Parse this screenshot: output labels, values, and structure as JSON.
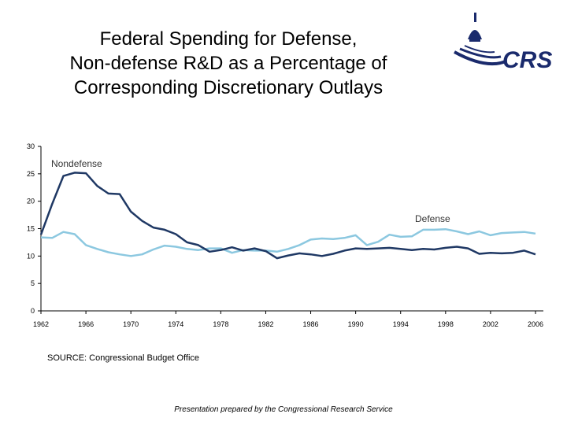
{
  "title_lines": [
    "Federal Spending for Defense,",
    "Non-defense R&D as a Percentage of",
    "Corresponding Discretionary Outlays"
  ],
  "logo": {
    "text": "CRS",
    "icon": "capitol-dome-icon",
    "color": "#1a2a6c"
  },
  "source": "SOURCE: Congressional Budget Office",
  "footer": "Presentation prepared by the Congressional Research Service",
  "chart_data": {
    "type": "line",
    "title": "",
    "xlabel": "",
    "ylabel": "",
    "xlim": [
      1962,
      2006
    ],
    "ylim": [
      0,
      30
    ],
    "yticks": [
      0,
      5,
      10,
      15,
      20,
      25,
      30
    ],
    "xticks": [
      1962,
      1966,
      1970,
      1974,
      1978,
      1982,
      1986,
      1990,
      1994,
      1998,
      2002,
      2006
    ],
    "grid": false,
    "x": [
      1962,
      1963,
      1964,
      1965,
      1966,
      1967,
      1968,
      1969,
      1970,
      1971,
      1972,
      1973,
      1974,
      1975,
      1976,
      1977,
      1978,
      1979,
      1980,
      1981,
      1982,
      1983,
      1984,
      1985,
      1986,
      1987,
      1988,
      1989,
      1990,
      1991,
      1992,
      1993,
      1994,
      1995,
      1996,
      1997,
      1998,
      1999,
      2000,
      2001,
      2002,
      2003,
      2004,
      2005,
      2006
    ],
    "series": [
      {
        "name": "Nondefense",
        "color": "#1f3864",
        "values": [
          13.9,
          19.5,
          24.6,
          25.2,
          25.1,
          22.8,
          21.4,
          21.3,
          18.1,
          16.4,
          15.2,
          14.8,
          14.0,
          12.5,
          12.0,
          10.8,
          11.1,
          11.6,
          11.0,
          11.4,
          10.9,
          9.6,
          10.1,
          10.5,
          10.3,
          10.0,
          10.4,
          11.0,
          11.4,
          11.3,
          11.4,
          11.5,
          11.3,
          11.1,
          11.3,
          11.2,
          11.5,
          11.7,
          11.4,
          10.4,
          10.6,
          10.5,
          10.6,
          11.0,
          10.3
        ]
      },
      {
        "name": "Defense",
        "color": "#8cc8e0",
        "values": [
          13.4,
          13.3,
          14.4,
          14.0,
          12.0,
          11.3,
          10.7,
          10.3,
          10.0,
          10.3,
          11.2,
          11.9,
          11.7,
          11.3,
          11.1,
          11.4,
          11.4,
          10.6,
          11.1,
          11.0,
          11.0,
          10.8,
          11.3,
          12.0,
          13.0,
          13.2,
          13.1,
          13.3,
          13.8,
          12.0,
          12.6,
          13.9,
          13.5,
          13.6,
          14.8,
          14.8,
          14.9,
          14.5,
          14.0,
          14.5,
          13.8,
          14.2,
          14.3,
          14.4,
          14.1
        ]
      }
    ],
    "annotations": [
      "Nondefense",
      "Defense"
    ]
  }
}
